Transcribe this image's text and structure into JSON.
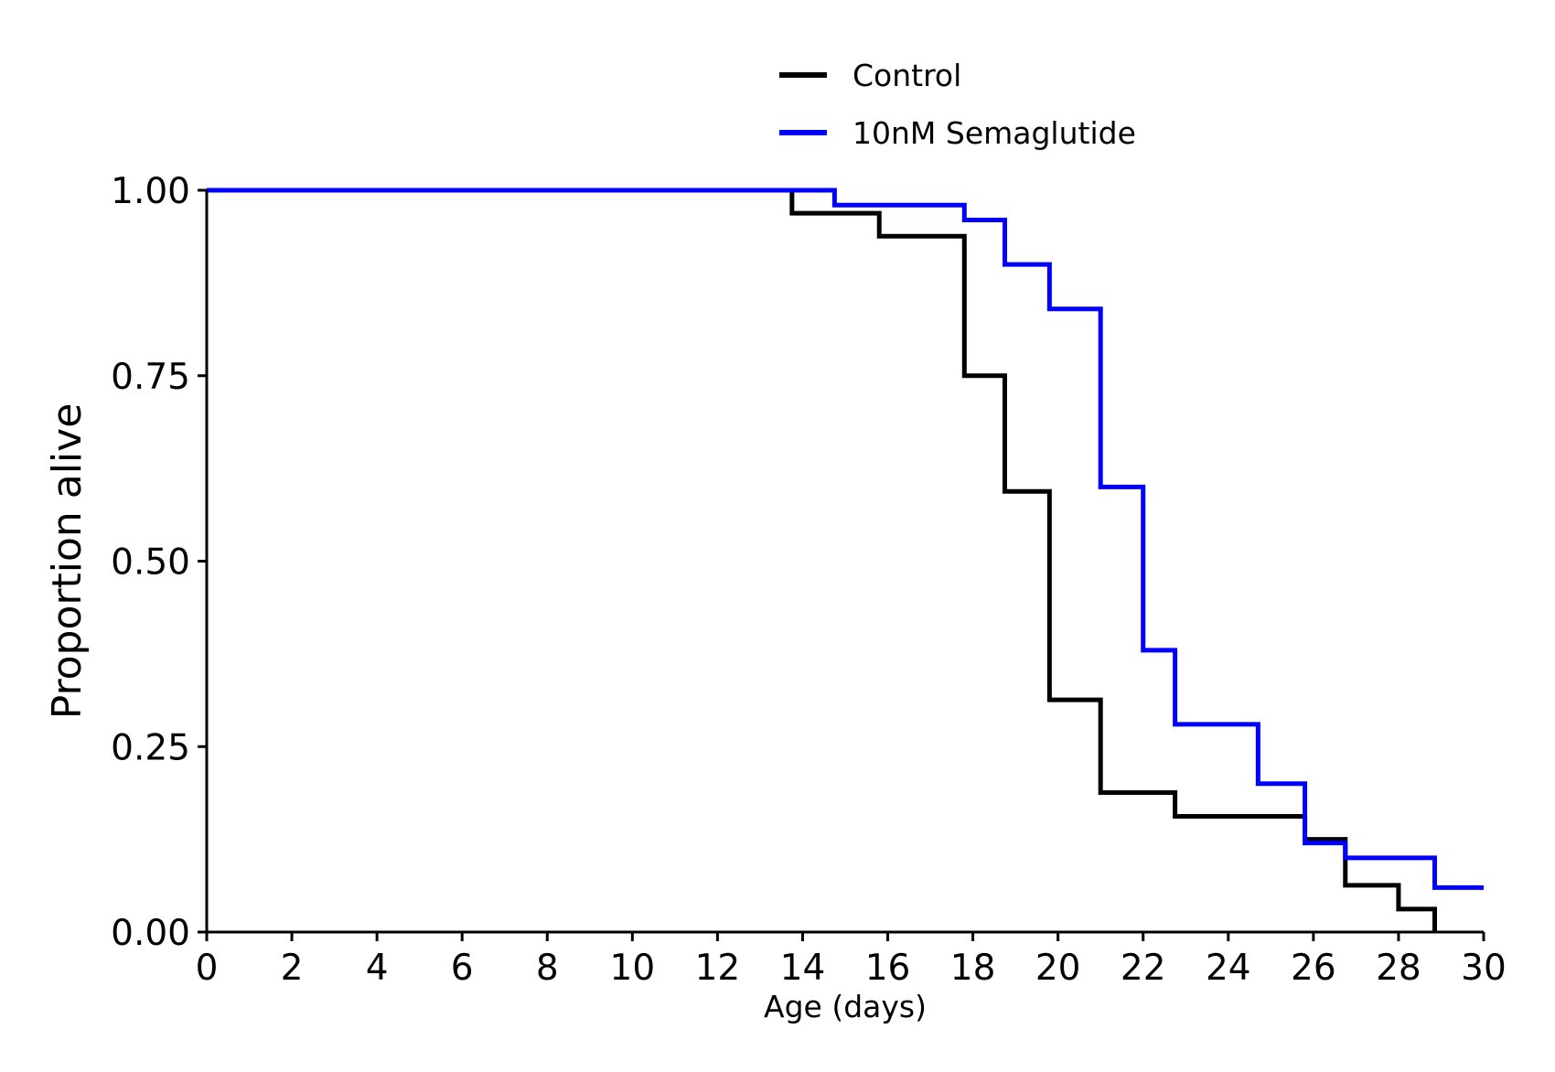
{
  "chart_data": {
    "type": "line",
    "step": true,
    "xlabel": "Age (days)",
    "ylabel": "Proportion alive",
    "xlim": [
      0,
      30
    ],
    "ylim": [
      0,
      1
    ],
    "xticks": [
      0,
      2,
      4,
      6,
      8,
      10,
      12,
      14,
      16,
      18,
      20,
      22,
      24,
      26,
      28,
      30
    ],
    "xtick_labels": [
      "0",
      "2",
      "4",
      "6",
      "8",
      "10",
      "12",
      "14",
      "16",
      "18",
      "20",
      "22",
      "24",
      "26",
      "28",
      "30"
    ],
    "yticks": [
      0,
      0.25,
      0.5,
      0.75,
      1.0
    ],
    "ytick_labels": [
      "0.00",
      "0.25",
      "0.50",
      "0.75",
      "1.00"
    ],
    "grid": false,
    "legend_position": "top-center",
    "series": [
      {
        "name": "Control",
        "color": "#000000",
        "x": [
          0,
          13.75,
          15.8,
          17.8,
          18.75,
          19.8,
          21.0,
          22.75,
          25.8,
          26.75,
          28.0,
          28.85
        ],
        "y": [
          1.0,
          0.969,
          0.938,
          0.75,
          0.594,
          0.313,
          0.188,
          0.156,
          0.125,
          0.063,
          0.031,
          0.0
        ]
      },
      {
        "name": "10nM Semaglutide",
        "color": "#0000ff",
        "x": [
          0,
          14.75,
          17.8,
          18.75,
          19.8,
          21.0,
          22.0,
          22.75,
          24.7,
          25.8,
          26.75,
          28.85,
          30
        ],
        "y": [
          1.0,
          0.98,
          0.96,
          0.9,
          0.84,
          0.6,
          0.38,
          0.28,
          0.2,
          0.12,
          0.1,
          0.06,
          0.06
        ]
      }
    ]
  }
}
